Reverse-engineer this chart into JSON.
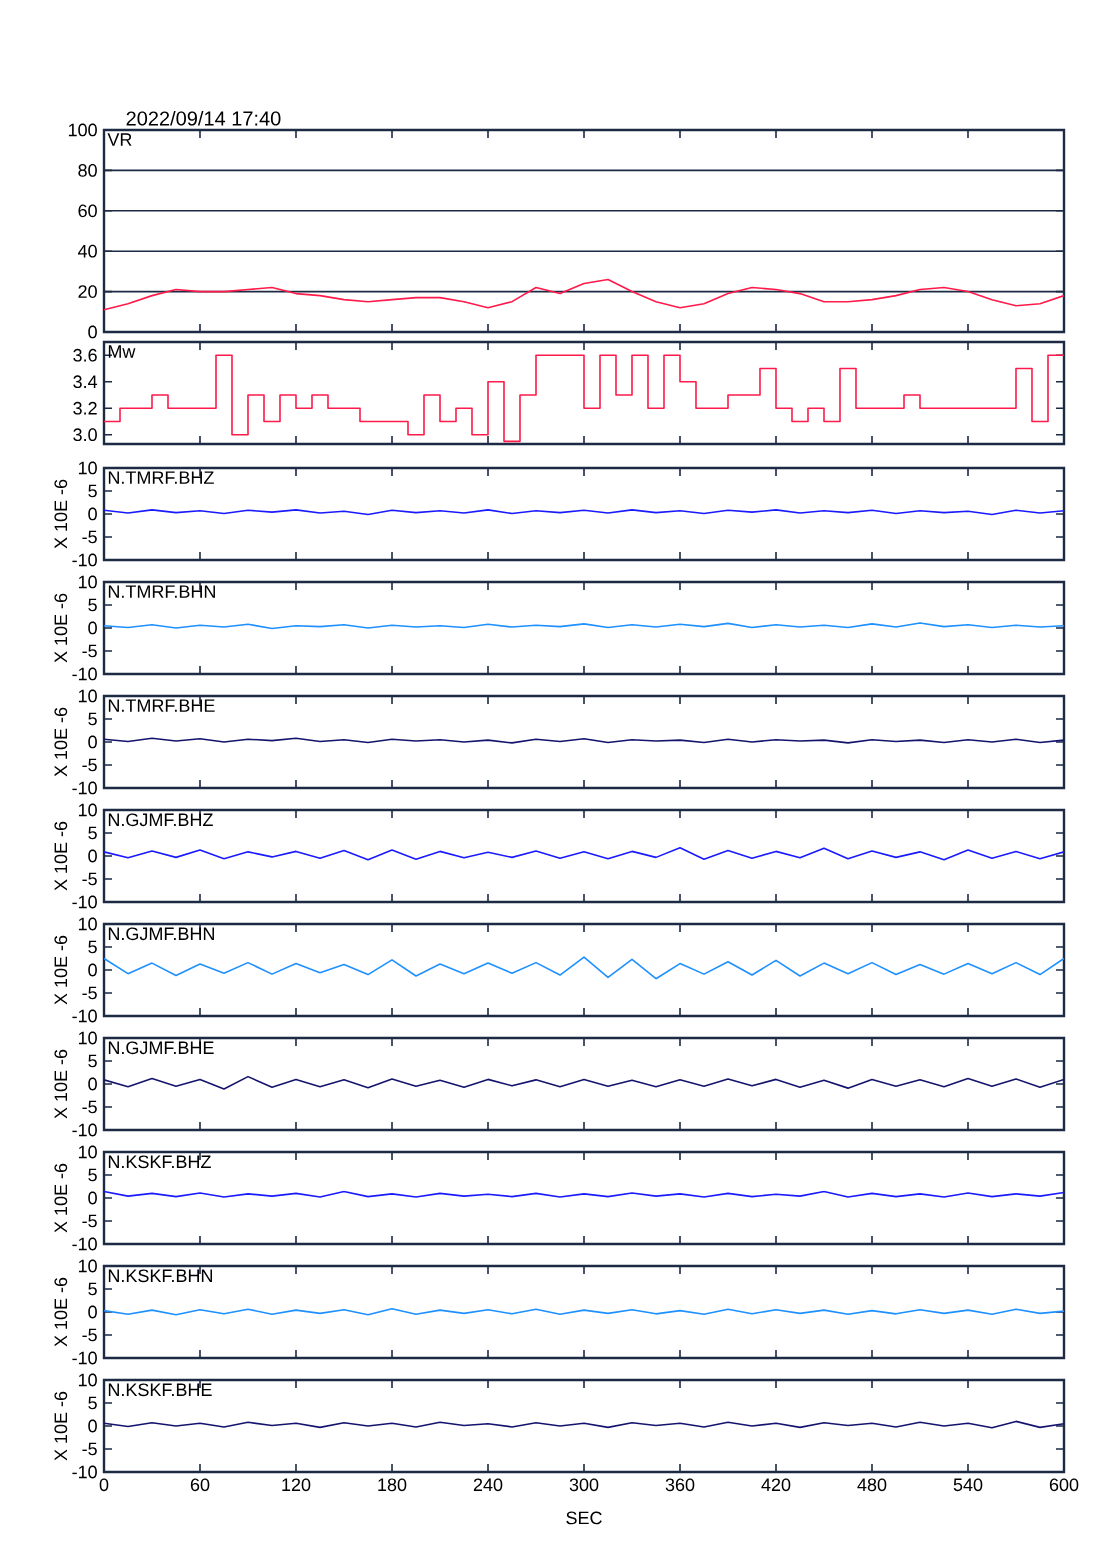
{
  "chart_data": [
    {
      "type": "line",
      "title": "VR",
      "annotations": [
        "2022/09/14  17:40"
      ],
      "x": [
        0,
        15,
        30,
        45,
        60,
        75,
        90,
        105,
        120,
        135,
        150,
        165,
        180,
        195,
        210,
        225,
        240,
        255,
        270,
        285,
        300,
        315,
        330,
        345,
        360,
        375,
        390,
        405,
        420,
        435,
        450,
        465,
        480,
        495,
        510,
        525,
        540,
        555,
        570,
        585,
        600
      ],
      "xlim": [
        0,
        600
      ],
      "xticks": [
        0,
        60,
        120,
        180,
        240,
        300,
        360,
        420,
        480,
        540,
        600
      ],
      "ylim": [
        0,
        100
      ],
      "yticks": [
        0,
        20,
        40,
        60,
        80,
        100
      ],
      "grid": "y",
      "tick_labels": "y",
      "series": [
        {
          "color": "#ff1a4a",
          "values": [
            11,
            14,
            18,
            21,
            20,
            20,
            21,
            22,
            19,
            18,
            16,
            15,
            16,
            17,
            17,
            15,
            12,
            15,
            22,
            19,
            24,
            26,
            20,
            15,
            12,
            14,
            19,
            22,
            21,
            19,
            15,
            15,
            16,
            18,
            21,
            22,
            20,
            16,
            13,
            14,
            18
          ]
        }
      ]
    },
    {
      "type": "step",
      "title": "Mw",
      "x": [
        0,
        10,
        20,
        30,
        40,
        50,
        60,
        70,
        80,
        90,
        100,
        110,
        120,
        130,
        140,
        150,
        160,
        170,
        180,
        190,
        200,
        210,
        220,
        230,
        240,
        250,
        260,
        270,
        280,
        290,
        300,
        310,
        320,
        330,
        340,
        350,
        360,
        370,
        380,
        390,
        400,
        410,
        420,
        430,
        440,
        450,
        460,
        470,
        480,
        490,
        500,
        510,
        520,
        530,
        540,
        550,
        560,
        570,
        580,
        590,
        600
      ],
      "xlim": [
        0,
        600
      ],
      "xticks": [
        0,
        60,
        120,
        180,
        240,
        300,
        360,
        420,
        480,
        540,
        600
      ],
      "ylim": [
        2.93,
        3.7
      ],
      "yticks": [
        {
          "value": 3.0,
          "label": "3.0"
        },
        {
          "value": 3.2,
          "label": "3.2"
        },
        {
          "value": 3.4,
          "label": "3.4"
        },
        {
          "value": 3.6,
          "label": "3.6"
        }
      ],
      "tick_labels": "y",
      "series": [
        {
          "color": "#ff1a4a",
          "values": [
            3.1,
            3.2,
            3.2,
            3.3,
            3.2,
            3.2,
            3.2,
            3.6,
            3.0,
            3.3,
            3.1,
            3.3,
            3.2,
            3.3,
            3.2,
            3.2,
            3.1,
            3.1,
            3.1,
            3.0,
            3.3,
            3.1,
            3.2,
            3.0,
            3.4,
            2.95,
            3.3,
            3.6,
            3.6,
            3.6,
            3.2,
            3.6,
            3.3,
            3.6,
            3.2,
            3.6,
            3.4,
            3.2,
            3.2,
            3.3,
            3.3,
            3.5,
            3.2,
            3.1,
            3.2,
            3.1,
            3.5,
            3.2,
            3.2,
            3.2,
            3.3,
            3.2,
            3.2,
            3.2,
            3.2,
            3.2,
            3.2,
            3.5,
            3.1,
            3.6,
            3.6
          ]
        }
      ]
    },
    {
      "type": "line",
      "title": "N.TMRF.BHZ",
      "ylabel": "X 10E -6",
      "x": [
        0,
        15,
        30,
        45,
        60,
        75,
        90,
        105,
        120,
        135,
        150,
        165,
        180,
        195,
        210,
        225,
        240,
        255,
        270,
        285,
        300,
        315,
        330,
        345,
        360,
        375,
        390,
        405,
        420,
        435,
        450,
        465,
        480,
        495,
        510,
        525,
        540,
        555,
        570,
        585,
        600
      ],
      "xlim": [
        0,
        600
      ],
      "xticks": [
        0,
        60,
        120,
        180,
        240,
        300,
        360,
        420,
        480,
        540,
        600
      ],
      "ylim": [
        -10,
        10
      ],
      "yticks": [
        -10,
        -5,
        0,
        5,
        10
      ],
      "tick_labels": "y",
      "series": [
        {
          "color": "#1a1aff",
          "values": [
            0.8,
            0.2,
            0.9,
            0.3,
            0.7,
            0.1,
            0.8,
            0.4,
            0.9,
            0.2,
            0.6,
            -0.1,
            0.8,
            0.3,
            0.7,
            0.2,
            0.9,
            0.1,
            0.7,
            0.3,
            0.8,
            0.2,
            0.9,
            0.3,
            0.7,
            0.1,
            0.8,
            0.4,
            0.9,
            0.2,
            0.7,
            0.3,
            0.8,
            0.1,
            0.7,
            0.3,
            0.6,
            -0.1,
            0.8,
            0.2,
            0.7
          ]
        }
      ]
    },
    {
      "type": "line",
      "title": "N.TMRF.BHN",
      "ylabel": "X 10E -6",
      "x": [
        0,
        15,
        30,
        45,
        60,
        75,
        90,
        105,
        120,
        135,
        150,
        165,
        180,
        195,
        210,
        225,
        240,
        255,
        270,
        285,
        300,
        315,
        330,
        345,
        360,
        375,
        390,
        405,
        420,
        435,
        450,
        465,
        480,
        495,
        510,
        525,
        540,
        555,
        570,
        585,
        600
      ],
      "xlim": [
        0,
        600
      ],
      "xticks": [
        0,
        60,
        120,
        180,
        240,
        300,
        360,
        420,
        480,
        540,
        600
      ],
      "ylim": [
        -10,
        10
      ],
      "yticks": [
        -10,
        -5,
        0,
        5,
        10
      ],
      "tick_labels": "y",
      "series": [
        {
          "color": "#1e90ff",
          "values": [
            0.5,
            0.1,
            0.7,
            0.0,
            0.6,
            0.2,
            0.8,
            -0.1,
            0.5,
            0.3,
            0.7,
            0.0,
            0.6,
            0.2,
            0.5,
            0.1,
            0.8,
            0.2,
            0.6,
            0.3,
            0.9,
            0.1,
            0.7,
            0.2,
            0.8,
            0.3,
            1.0,
            0.1,
            0.7,
            0.2,
            0.6,
            0.1,
            0.9,
            0.2,
            1.1,
            0.3,
            0.7,
            0.1,
            0.6,
            0.2,
            0.5
          ]
        }
      ]
    },
    {
      "type": "line",
      "title": "N.TMRF.BHE",
      "ylabel": "X 10E -6",
      "x": [
        0,
        15,
        30,
        45,
        60,
        75,
        90,
        105,
        120,
        135,
        150,
        165,
        180,
        195,
        210,
        225,
        240,
        255,
        270,
        285,
        300,
        315,
        330,
        345,
        360,
        375,
        390,
        405,
        420,
        435,
        450,
        465,
        480,
        495,
        510,
        525,
        540,
        555,
        570,
        585,
        600
      ],
      "xlim": [
        0,
        600
      ],
      "xticks": [
        0,
        60,
        120,
        180,
        240,
        300,
        360,
        420,
        480,
        540,
        600
      ],
      "ylim": [
        -10,
        10
      ],
      "yticks": [
        -10,
        -5,
        0,
        5,
        10
      ],
      "tick_labels": "y",
      "series": [
        {
          "color": "#14146e",
          "values": [
            0.6,
            0.1,
            0.8,
            0.2,
            0.7,
            0.0,
            0.6,
            0.3,
            0.8,
            0.1,
            0.5,
            -0.1,
            0.6,
            0.2,
            0.5,
            0.0,
            0.4,
            -0.2,
            0.6,
            0.1,
            0.7,
            -0.1,
            0.5,
            0.2,
            0.4,
            -0.1,
            0.6,
            0.0,
            0.5,
            0.2,
            0.4,
            -0.2,
            0.5,
            0.1,
            0.4,
            -0.1,
            0.5,
            0.0,
            0.6,
            -0.1,
            0.4
          ]
        }
      ]
    },
    {
      "type": "line",
      "title": "N.GJMF.BHZ",
      "ylabel": "X 10E -6",
      "x": [
        0,
        15,
        30,
        45,
        60,
        75,
        90,
        105,
        120,
        135,
        150,
        165,
        180,
        195,
        210,
        225,
        240,
        255,
        270,
        285,
        300,
        315,
        330,
        345,
        360,
        375,
        390,
        405,
        420,
        435,
        450,
        465,
        480,
        495,
        510,
        525,
        540,
        555,
        570,
        585,
        600
      ],
      "xlim": [
        0,
        600
      ],
      "xticks": [
        0,
        60,
        120,
        180,
        240,
        300,
        360,
        420,
        480,
        540,
        600
      ],
      "ylim": [
        -10,
        10
      ],
      "yticks": [
        -10,
        -5,
        0,
        5,
        10
      ],
      "tick_labels": "y",
      "series": [
        {
          "color": "#1a1aff",
          "values": [
            0.9,
            -0.4,
            1.1,
            -0.3,
            1.3,
            -0.6,
            0.9,
            -0.2,
            1.0,
            -0.5,
            1.2,
            -0.8,
            1.3,
            -0.7,
            1.0,
            -0.4,
            0.8,
            -0.3,
            1.1,
            -0.5,
            0.9,
            -0.6,
            1.0,
            -0.3,
            1.8,
            -0.7,
            1.2,
            -0.5,
            1.0,
            -0.4,
            1.7,
            -0.6,
            1.1,
            -0.3,
            0.9,
            -0.8,
            1.3,
            -0.5,
            1.0,
            -0.6,
            0.9
          ]
        }
      ]
    },
    {
      "type": "line",
      "title": "N.GJMF.BHN",
      "ylabel": "X 10E -6",
      "x": [
        0,
        15,
        30,
        45,
        60,
        75,
        90,
        105,
        120,
        135,
        150,
        165,
        180,
        195,
        210,
        225,
        240,
        255,
        270,
        285,
        300,
        315,
        330,
        345,
        360,
        375,
        390,
        405,
        420,
        435,
        450,
        465,
        480,
        495,
        510,
        525,
        540,
        555,
        570,
        585,
        600
      ],
      "xlim": [
        0,
        600
      ],
      "xticks": [
        0,
        60,
        120,
        180,
        240,
        300,
        360,
        420,
        480,
        540,
        600
      ],
      "ylim": [
        -10,
        10
      ],
      "yticks": [
        -10,
        -5,
        0,
        5,
        10
      ],
      "tick_labels": "y",
      "series": [
        {
          "color": "#1e90ff",
          "values": [
            2.5,
            -0.8,
            1.5,
            -1.2,
            1.3,
            -0.7,
            1.6,
            -0.9,
            1.4,
            -0.6,
            1.2,
            -1.0,
            2.2,
            -1.3,
            1.3,
            -0.8,
            1.5,
            -0.7,
            1.6,
            -1.1,
            2.8,
            -1.6,
            2.3,
            -1.9,
            1.4,
            -0.9,
            1.8,
            -1.1,
            2.1,
            -1.3,
            1.5,
            -0.8,
            1.6,
            -1.0,
            1.2,
            -0.9,
            1.4,
            -0.8,
            1.6,
            -1.0,
            2.5
          ]
        }
      ]
    },
    {
      "type": "line",
      "title": "N.GJMF.BHE",
      "ylabel": "X 10E -6",
      "x": [
        0,
        15,
        30,
        45,
        60,
        75,
        90,
        105,
        120,
        135,
        150,
        165,
        180,
        195,
        210,
        225,
        240,
        255,
        270,
        285,
        300,
        315,
        330,
        345,
        360,
        375,
        390,
        405,
        420,
        435,
        450,
        465,
        480,
        495,
        510,
        525,
        540,
        555,
        570,
        585,
        600
      ],
      "xlim": [
        0,
        600
      ],
      "xticks": [
        0,
        60,
        120,
        180,
        240,
        300,
        360,
        420,
        480,
        540,
        600
      ],
      "ylim": [
        -10,
        10
      ],
      "yticks": [
        -10,
        -5,
        0,
        5,
        10
      ],
      "tick_labels": "y",
      "series": [
        {
          "color": "#14146e",
          "values": [
            0.9,
            -0.6,
            1.2,
            -0.5,
            1.0,
            -1.1,
            1.6,
            -0.7,
            1.0,
            -0.6,
            0.9,
            -0.8,
            1.1,
            -0.5,
            0.8,
            -0.7,
            1.0,
            -0.4,
            0.9,
            -0.6,
            1.0,
            -0.5,
            0.8,
            -0.6,
            0.9,
            -0.5,
            1.1,
            -0.4,
            1.0,
            -0.7,
            0.8,
            -0.9,
            1.0,
            -0.5,
            0.9,
            -0.6,
            1.2,
            -0.5,
            1.1,
            -0.7,
            1.0
          ]
        }
      ]
    },
    {
      "type": "line",
      "title": "N.KSKF.BHZ",
      "ylabel": "X 10E -6",
      "x": [
        0,
        15,
        30,
        45,
        60,
        75,
        90,
        105,
        120,
        135,
        150,
        165,
        180,
        195,
        210,
        225,
        240,
        255,
        270,
        285,
        300,
        315,
        330,
        345,
        360,
        375,
        390,
        405,
        420,
        435,
        450,
        465,
        480,
        495,
        510,
        525,
        540,
        555,
        570,
        585,
        600
      ],
      "xlim": [
        0,
        600
      ],
      "xticks": [
        0,
        60,
        120,
        180,
        240,
        300,
        360,
        420,
        480,
        540,
        600
      ],
      "ylim": [
        -10,
        10
      ],
      "yticks": [
        -10,
        -5,
        0,
        5,
        10
      ],
      "tick_labels": "y",
      "series": [
        {
          "color": "#1a1aff",
          "values": [
            1.4,
            0.4,
            1.0,
            0.3,
            1.1,
            0.2,
            0.9,
            0.4,
            1.0,
            0.2,
            1.4,
            0.3,
            0.9,
            0.2,
            1.0,
            0.4,
            0.8,
            0.3,
            1.0,
            0.2,
            0.9,
            0.3,
            1.1,
            0.4,
            0.9,
            0.2,
            1.0,
            0.3,
            0.8,
            0.4,
            1.4,
            0.2,
            1.0,
            0.3,
            0.9,
            0.2,
            1.1,
            0.3,
            0.9,
            0.4,
            1.2
          ]
        }
      ]
    },
    {
      "type": "line",
      "title": "N.KSKF.BHN",
      "ylabel": "X 10E -6",
      "x": [
        0,
        15,
        30,
        45,
        60,
        75,
        90,
        105,
        120,
        135,
        150,
        165,
        180,
        195,
        210,
        225,
        240,
        255,
        270,
        285,
        300,
        315,
        330,
        345,
        360,
        375,
        390,
        405,
        420,
        435,
        450,
        465,
        480,
        495,
        510,
        525,
        540,
        555,
        570,
        585,
        600
      ],
      "xlim": [
        0,
        600
      ],
      "xticks": [
        0,
        60,
        120,
        180,
        240,
        300,
        360,
        420,
        480,
        540,
        600
      ],
      "ylim": [
        -10,
        10
      ],
      "yticks": [
        -10,
        -5,
        0,
        5,
        10
      ],
      "tick_labels": "y",
      "series": [
        {
          "color": "#1e90ff",
          "values": [
            0.3,
            -0.5,
            0.4,
            -0.6,
            0.5,
            -0.4,
            0.6,
            -0.5,
            0.4,
            -0.3,
            0.5,
            -0.6,
            0.7,
            -0.5,
            0.4,
            -0.3,
            0.5,
            -0.4,
            0.6,
            -0.5,
            0.4,
            -0.3,
            0.5,
            -0.4,
            0.3,
            -0.5,
            0.6,
            -0.4,
            0.5,
            -0.3,
            0.4,
            -0.5,
            0.3,
            -0.4,
            0.5,
            -0.3,
            0.4,
            -0.5,
            0.6,
            -0.3,
            0.2
          ]
        }
      ]
    },
    {
      "type": "line",
      "title": "N.KSKF.BHE",
      "ylabel": "X 10E -6",
      "x": [
        0,
        15,
        30,
        45,
        60,
        75,
        90,
        105,
        120,
        135,
        150,
        165,
        180,
        195,
        210,
        225,
        240,
        255,
        270,
        285,
        300,
        315,
        330,
        345,
        360,
        375,
        390,
        405,
        420,
        435,
        450,
        465,
        480,
        495,
        510,
        525,
        540,
        555,
        570,
        585,
        600
      ],
      "xlim": [
        0,
        600
      ],
      "xticks": [
        0,
        60,
        120,
        180,
        240,
        300,
        360,
        420,
        480,
        540,
        600
      ],
      "ylim": [
        -10,
        10
      ],
      "yticks": [
        -10,
        -5,
        0,
        5,
        10
      ],
      "xlabel": "SEC",
      "series": [
        {
          "color": "#14146e",
          "values": [
            0.6,
            -0.1,
            0.7,
            0.0,
            0.6,
            -0.2,
            0.8,
            0.1,
            0.6,
            -0.3,
            0.7,
            0.0,
            0.6,
            -0.2,
            0.8,
            0.1,
            0.5,
            -0.2,
            0.7,
            0.0,
            0.6,
            -0.3,
            0.7,
            0.1,
            0.6,
            -0.2,
            0.8,
            0.0,
            0.6,
            -0.3,
            0.7,
            0.1,
            0.6,
            -0.2,
            0.8,
            0.0,
            0.6,
            -0.4,
            1.0,
            -0.3,
            0.5
          ]
        }
      ]
    }
  ]
}
